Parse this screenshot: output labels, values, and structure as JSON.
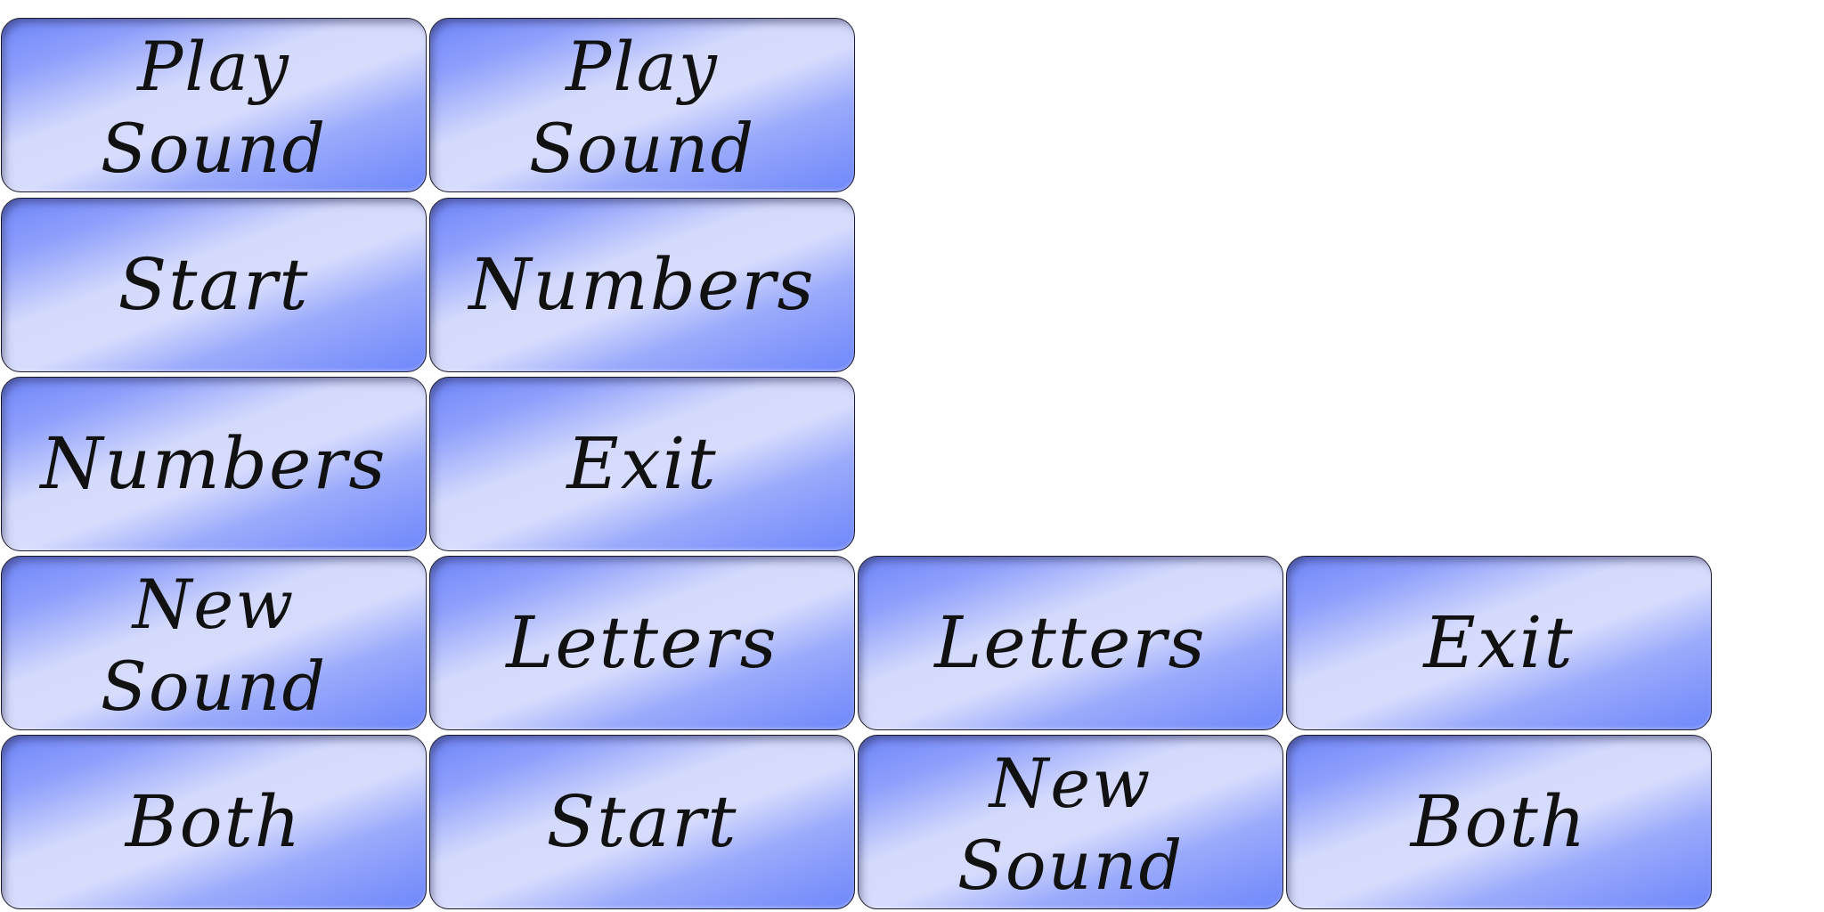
{
  "buttons": {
    "play_sound_a": "Play\nSound",
    "play_sound_b": "Play\nSound",
    "start_a": "Start",
    "numbers_a": "Numbers",
    "numbers_b": "Numbers",
    "exit_a": "Exit",
    "new_sound_a": "New\nSound",
    "letters_a": "Letters",
    "letters_b": "Letters",
    "exit_b": "Exit",
    "both_a": "Both",
    "start_b": "Start",
    "new_sound_b": "New\nSound",
    "both_b": "Both"
  },
  "colors": {
    "button_blue": "#6f86fb",
    "button_highlight": "#d7dcfd",
    "text": "#111111",
    "background": "#ffffff"
  }
}
